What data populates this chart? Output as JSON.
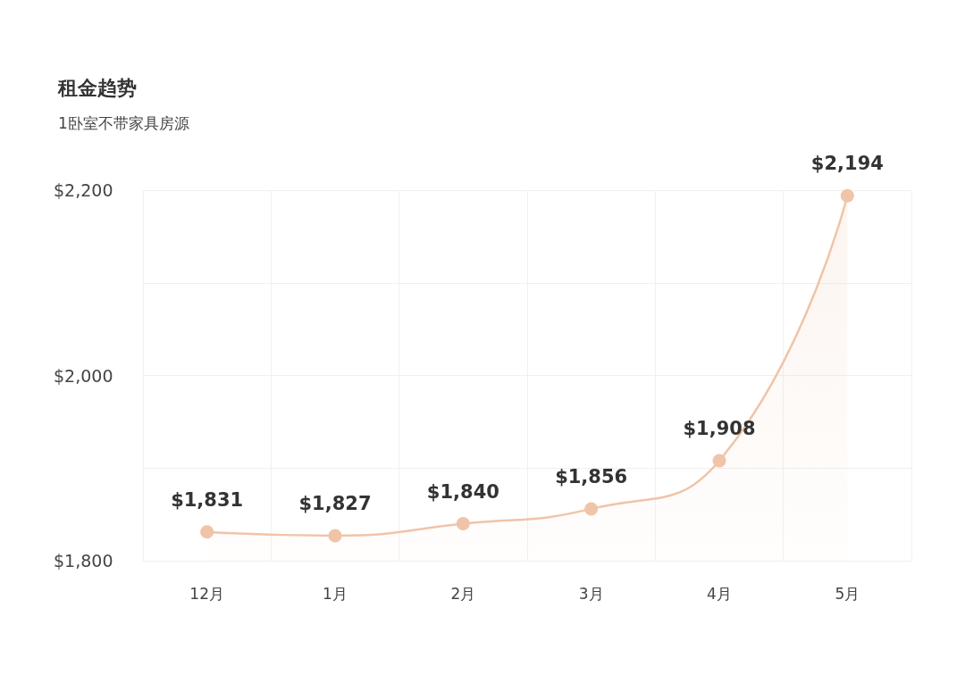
{
  "chart_data": {
    "type": "area",
    "title": "租金趋势",
    "subtitle": "1卧室不带家具房源",
    "categories": [
      "12月",
      "1月",
      "2月",
      "3月",
      "4月",
      "5月"
    ],
    "series": [
      {
        "color": "#f0c4a8",
        "values": [
          1831,
          1827,
          1840,
          1856,
          1908,
          2194
        ],
        "value_labels": [
          "$1,831",
          "$1,827",
          "$1,840",
          "$1,856",
          "$1,908",
          "$2,194"
        ]
      }
    ],
    "ylim": [
      1800,
      2200
    ],
    "yticks": [
      {
        "value": 1800,
        "label": "$1,800"
      },
      {
        "value": 1900,
        "label": null
      },
      {
        "value": 2000,
        "label": "$2,000"
      },
      {
        "value": 2100,
        "label": null
      },
      {
        "value": 2200,
        "label": "$2,200"
      }
    ],
    "grid": true,
    "marker": "circle",
    "line_style": "solid"
  }
}
